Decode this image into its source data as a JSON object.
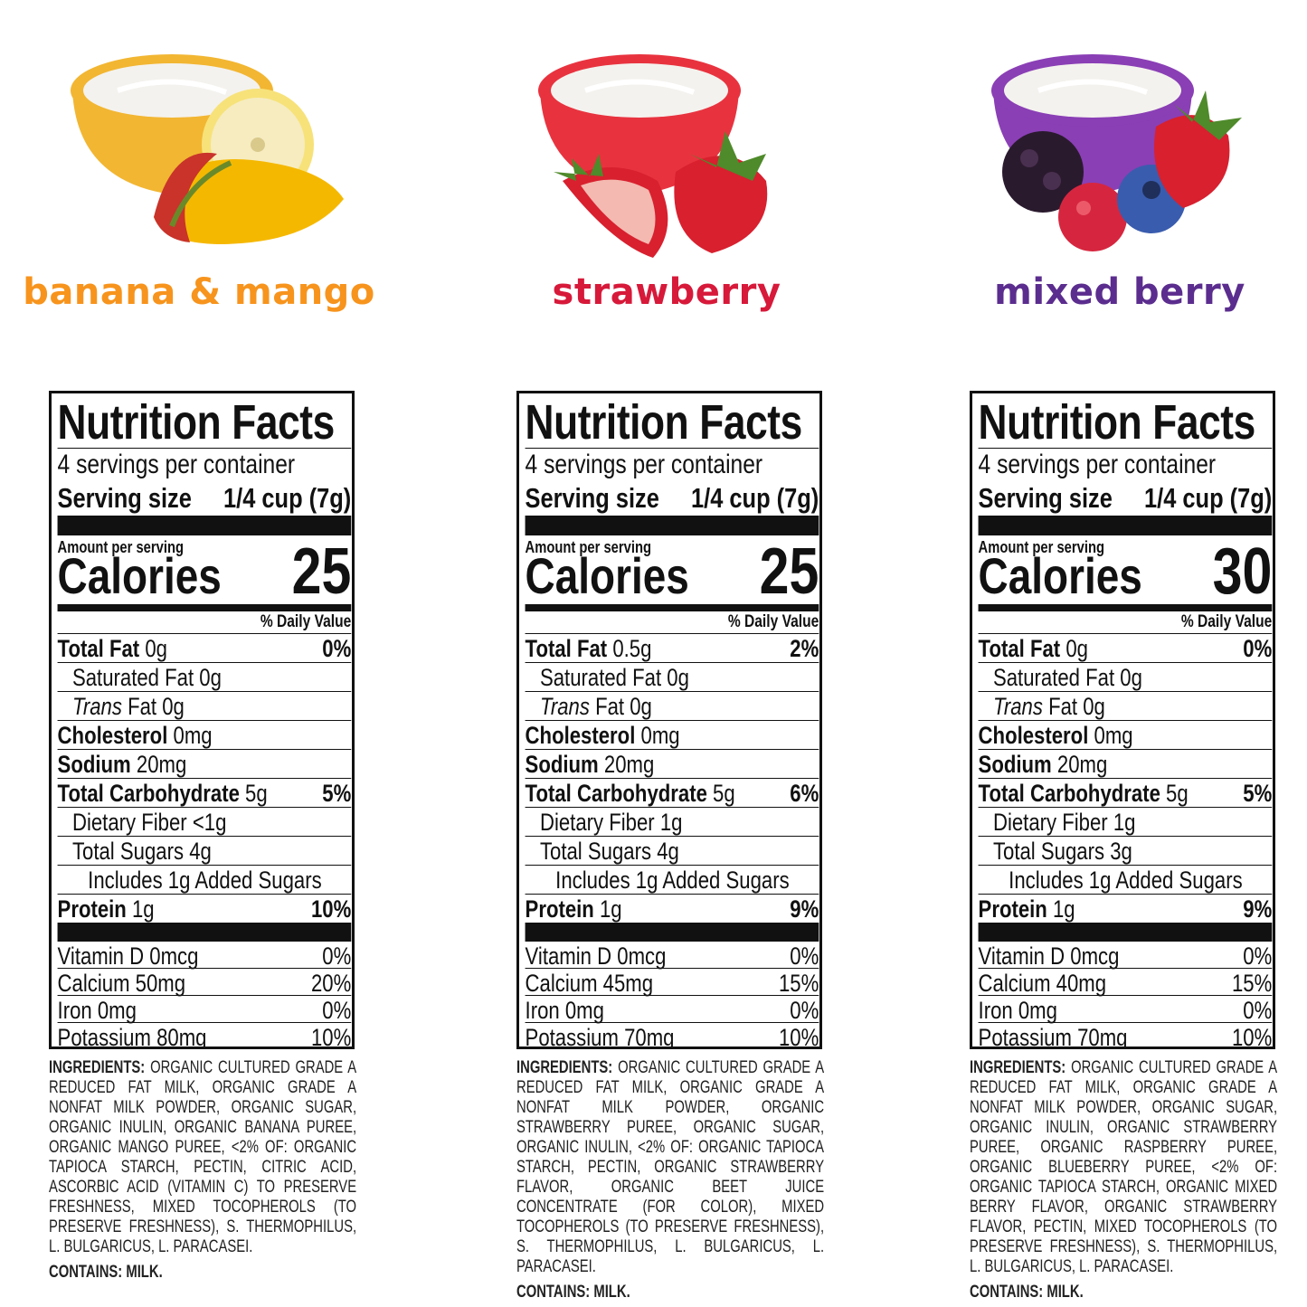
{
  "products": [
    {
      "name": "banana & mango",
      "color": "#f7941d",
      "bowl_color": "#f2b632",
      "fruits": [
        "banana",
        "mango"
      ],
      "facts": {
        "title": "Nutrition Facts",
        "servings": "4 servings per container",
        "serving_label": "Serving size",
        "serving_value": "1/4 cup (7g)",
        "amount_per": "Amount per serving",
        "calories_label": "Calories",
        "calories": "25",
        "dv_header": "% Daily Value",
        "rows": [
          {
            "label": "Total Fat",
            "amount": "0g",
            "dv": "0%",
            "style": "bold"
          },
          {
            "label": "Saturated Fat",
            "amount": "0g",
            "dv": "",
            "style": "indent"
          },
          {
            "label": "Trans",
            "label2": "Fat",
            "amount": "0g",
            "dv": "",
            "style": "trans"
          },
          {
            "label": "Cholesterol",
            "amount": "0mg",
            "dv": "",
            "style": "bold"
          },
          {
            "label": "Sodium",
            "amount": "20mg",
            "dv": "",
            "style": "bold"
          },
          {
            "label": "Total Carbohydrate",
            "amount": "5g",
            "dv": "5%",
            "style": "bold"
          },
          {
            "label": "Dietary Fiber",
            "amount": "<1g",
            "dv": "",
            "style": "indent"
          },
          {
            "label": "Total Sugars",
            "amount": "4g",
            "dv": "",
            "style": "indent"
          },
          {
            "label": "Includes 1g Added Sugars",
            "amount": "",
            "dv": "",
            "style": "indent2"
          },
          {
            "label": "Protein",
            "amount": "1g",
            "dv": "10%",
            "style": "bold"
          }
        ],
        "vitamins": [
          {
            "label": "Vitamin D 0mcg",
            "dv": "0%"
          },
          {
            "label": "Calcium 50mg",
            "dv": "20%"
          },
          {
            "label": "Iron 0mg",
            "dv": "0%"
          },
          {
            "label": "Potassium 80mg",
            "dv": "10%"
          }
        ]
      },
      "ingredients_label": "INGREDIENTS:",
      "ingredients": "ORGANIC CULTURED GRADE A REDUCED FAT MILK, ORGANIC GRADE A NONFAT MILK POWDER, ORGANIC SUGAR, ORGANIC INULIN, ORGANIC BANANA PUREE, ORGANIC MANGO PUREE, <2% OF: ORGANIC TAPIOCA STARCH, PECTIN, CITRIC ACID, ASCORBIC ACID (VITAMIN C) TO PRESERVE FRESHNESS, MIXED TOCOPHEROLS (TO PRESERVE FRESHNESS), S. THERMOPHILUS, L. BULGARICUS, L. PARACASEI.",
      "contains": "CONTAINS: MILK."
    },
    {
      "name": "strawberry",
      "color": "#d7193a",
      "bowl_color": "#e8333f",
      "fruits": [
        "strawberry"
      ],
      "facts": {
        "title": "Nutrition Facts",
        "servings": "4 servings per container",
        "serving_label": "Serving size",
        "serving_value": "1/4 cup (7g)",
        "amount_per": "Amount per serving",
        "calories_label": "Calories",
        "calories": "25",
        "dv_header": "% Daily Value",
        "rows": [
          {
            "label": "Total Fat",
            "amount": "0.5g",
            "dv": "2%",
            "style": "bold"
          },
          {
            "label": "Saturated Fat",
            "amount": "0g",
            "dv": "",
            "style": "indent"
          },
          {
            "label": "Trans",
            "label2": "Fat",
            "amount": "0g",
            "dv": "",
            "style": "trans"
          },
          {
            "label": "Cholesterol",
            "amount": "0mg",
            "dv": "",
            "style": "bold"
          },
          {
            "label": "Sodium",
            "amount": "20mg",
            "dv": "",
            "style": "bold"
          },
          {
            "label": "Total Carbohydrate",
            "amount": "5g",
            "dv": "6%",
            "style": "bold"
          },
          {
            "label": "Dietary Fiber",
            "amount": "1g",
            "dv": "",
            "style": "indent"
          },
          {
            "label": "Total Sugars",
            "amount": "4g",
            "dv": "",
            "style": "indent"
          },
          {
            "label": "Includes 1g Added Sugars",
            "amount": "",
            "dv": "",
            "style": "indent2"
          },
          {
            "label": "Protein",
            "amount": "1g",
            "dv": "9%",
            "style": "bold"
          }
        ],
        "vitamins": [
          {
            "label": "Vitamin D 0mcg",
            "dv": "0%"
          },
          {
            "label": "Calcium 45mg",
            "dv": "15%"
          },
          {
            "label": "Iron 0mg",
            "dv": "0%"
          },
          {
            "label": "Potassium 70mg",
            "dv": "10%"
          }
        ]
      },
      "ingredients_label": "INGREDIENTS:",
      "ingredients": "ORGANIC CULTURED GRADE A REDUCED FAT MILK, ORGANIC GRADE A NONFAT MILK POWDER, ORGANIC STRAWBERRY PUREE, ORGANIC SUGAR, ORGANIC INULIN, <2% OF: ORGANIC TAPIOCA STARCH, PECTIN, ORGANIC STRAWBERRY FLAVOR, ORGANIC BEET JUICE CONCENTRATE (FOR COLOR), MIXED TOCOPHEROLS (TO PRESERVE FRESHNESS), S. THERMOPHILUS, L. BULGARICUS, L. PARACASEI.",
      "contains": "CONTAINS: MILK."
    },
    {
      "name": "mixed berry",
      "color": "#5b2d8e",
      "bowl_color": "#8a3fb5",
      "fruits": [
        "blackberry",
        "raspberry",
        "blueberry",
        "strawberry"
      ],
      "facts": {
        "title": "Nutrition Facts",
        "servings": "4 servings per container",
        "serving_label": "Serving size",
        "serving_value": "1/4 cup (7g)",
        "amount_per": "Amount per serving",
        "calories_label": "Calories",
        "calories": "30",
        "dv_header": "% Daily Value",
        "rows": [
          {
            "label": "Total Fat",
            "amount": "0g",
            "dv": "0%",
            "style": "bold"
          },
          {
            "label": "Saturated Fat",
            "amount": "0g",
            "dv": "",
            "style": "indent"
          },
          {
            "label": "Trans",
            "label2": "Fat",
            "amount": "0g",
            "dv": "",
            "style": "trans"
          },
          {
            "label": "Cholesterol",
            "amount": "0mg",
            "dv": "",
            "style": "bold"
          },
          {
            "label": "Sodium",
            "amount": "20mg",
            "dv": "",
            "style": "bold"
          },
          {
            "label": "Total Carbohydrate",
            "amount": "5g",
            "dv": "5%",
            "style": "bold"
          },
          {
            "label": "Dietary Fiber",
            "amount": "1g",
            "dv": "",
            "style": "indent"
          },
          {
            "label": "Total Sugars",
            "amount": "3g",
            "dv": "",
            "style": "indent"
          },
          {
            "label": "Includes 1g Added Sugars",
            "amount": "",
            "dv": "",
            "style": "indent2"
          },
          {
            "label": "Protein",
            "amount": "1g",
            "dv": "9%",
            "style": "bold"
          }
        ],
        "vitamins": [
          {
            "label": "Vitamin D 0mcg",
            "dv": "0%"
          },
          {
            "label": "Calcium 40mg",
            "dv": "15%"
          },
          {
            "label": "Iron 0mg",
            "dv": "0%"
          },
          {
            "label": "Potassium 70mg",
            "dv": "10%"
          }
        ]
      },
      "ingredients_label": "INGREDIENTS:",
      "ingredients": "ORGANIC CULTURED GRADE A REDUCED FAT MILK, ORGANIC GRADE A NONFAT MILK POWDER, ORGANIC SUGAR, ORGANIC INULIN, ORGANIC STRAWBERRY PUREE, ORGANIC RASPBERRY PUREE, ORGANIC BLUEBERRY PUREE, <2% OF: ORGANIC TAPIOCA STARCH, ORGANIC MIXED BERRY FLAVOR, ORGANIC STRAWBERRY FLAVOR, PECTIN, MIXED TOCOPHEROLS (TO PRESERVE FRESHNESS), S. THERMOPHILUS, L. BULGARICUS, L. PARACASEI.",
      "contains": "CONTAINS: MILK."
    }
  ]
}
